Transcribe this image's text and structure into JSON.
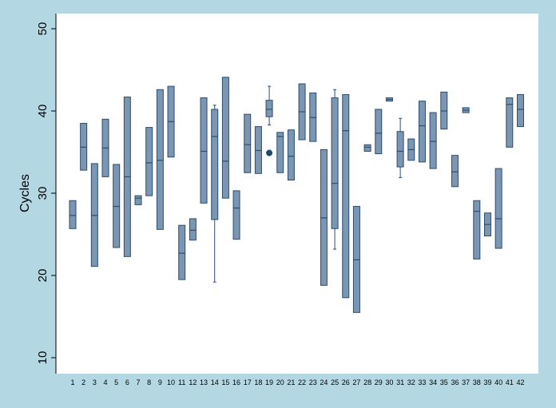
{
  "chart_data": {
    "type": "box",
    "title": "",
    "xlabel": "",
    "ylabel": "Cycles",
    "ylim": [
      8,
      52
    ],
    "yticks": [
      10,
      20,
      30,
      40,
      50
    ],
    "grid": false,
    "categories": [
      "1",
      "2",
      "3",
      "4",
      "5",
      "6",
      "7",
      "8",
      "9",
      "10",
      "11",
      "12",
      "13",
      "14",
      "15",
      "16",
      "17",
      "18",
      "19",
      "20",
      "21",
      "22",
      "23",
      "24",
      "25",
      "26",
      "27",
      "28",
      "29",
      "30",
      "31",
      "32",
      "33",
      "34",
      "35",
      "36",
      "37",
      "38",
      "39",
      "40",
      "41",
      "42"
    ],
    "boxes": [
      {
        "q1": 25.7,
        "median": 27.3,
        "q3": 29.1,
        "whisker_low": 25.7,
        "whisker_high": 29.1,
        "outliers": []
      },
      {
        "q1": 32.8,
        "median": 35.6,
        "q3": 38.5,
        "whisker_low": 32.8,
        "whisker_high": 38.5,
        "outliers": []
      },
      {
        "q1": 21.1,
        "median": 27.3,
        "q3": 33.6,
        "whisker_low": 21.1,
        "whisker_high": 33.6,
        "outliers": []
      },
      {
        "q1": 32.0,
        "median": 35.5,
        "q3": 39.0,
        "whisker_low": 32.0,
        "whisker_high": 39.0,
        "outliers": []
      },
      {
        "q1": 23.4,
        "median": 28.4,
        "q3": 33.5,
        "whisker_low": 23.4,
        "whisker_high": 33.5,
        "outliers": []
      },
      {
        "q1": 22.3,
        "median": 32.0,
        "q3": 41.7,
        "whisker_low": 22.3,
        "whisker_high": 41.7,
        "outliers": []
      },
      {
        "q1": 28.6,
        "median": 29.4,
        "q3": 29.7,
        "whisker_low": 28.6,
        "whisker_high": 29.7,
        "outliers": []
      },
      {
        "q1": 29.7,
        "median": 33.7,
        "q3": 38.0,
        "whisker_low": 29.7,
        "whisker_high": 38.0,
        "outliers": []
      },
      {
        "q1": 25.6,
        "median": 34.0,
        "q3": 42.6,
        "whisker_low": 25.6,
        "whisker_high": 42.6,
        "outliers": []
      },
      {
        "q1": 34.4,
        "median": 38.7,
        "q3": 43.0,
        "whisker_low": 34.4,
        "whisker_high": 43.0,
        "outliers": []
      },
      {
        "q1": 19.5,
        "median": 22.7,
        "q3": 26.1,
        "whisker_low": 19.5,
        "whisker_high": 26.1,
        "outliers": []
      },
      {
        "q1": 24.3,
        "median": 25.5,
        "q3": 26.9,
        "whisker_low": 24.3,
        "whisker_high": 26.9,
        "outliers": []
      },
      {
        "q1": 28.8,
        "median": 35.1,
        "q3": 41.6,
        "whisker_low": 28.8,
        "whisker_high": 41.6,
        "outliers": []
      },
      {
        "q1": 26.8,
        "median": 36.9,
        "q3": 40.2,
        "whisker_low": 19.2,
        "whisker_high": 40.7,
        "outliers": []
      },
      {
        "q1": 29.4,
        "median": 33.9,
        "q3": 44.1,
        "whisker_low": 29.4,
        "whisker_high": 44.1,
        "outliers": []
      },
      {
        "q1": 24.4,
        "median": 28.2,
        "q3": 30.3,
        "whisker_low": 24.4,
        "whisker_high": 30.3,
        "outliers": []
      },
      {
        "q1": 32.5,
        "median": 35.9,
        "q3": 39.6,
        "whisker_low": 32.5,
        "whisker_high": 39.6,
        "outliers": []
      },
      {
        "q1": 32.4,
        "median": 35.2,
        "q3": 38.1,
        "whisker_low": 32.4,
        "whisker_high": 38.1,
        "outliers": []
      },
      {
        "q1": 39.3,
        "median": 40.2,
        "q3": 41.3,
        "whisker_low": 38.3,
        "whisker_high": 43.0,
        "outliers": [
          34.9
        ]
      },
      {
        "q1": 32.5,
        "median": 36.9,
        "q3": 37.4,
        "whisker_low": 32.5,
        "whisker_high": 37.4,
        "outliers": []
      },
      {
        "q1": 31.6,
        "median": 34.5,
        "q3": 37.7,
        "whisker_low": 31.6,
        "whisker_high": 37.7,
        "outliers": []
      },
      {
        "q1": 36.5,
        "median": 39.9,
        "q3": 43.3,
        "whisker_low": 36.5,
        "whisker_high": 43.3,
        "outliers": []
      },
      {
        "q1": 36.3,
        "median": 39.2,
        "q3": 42.2,
        "whisker_low": 36.3,
        "whisker_high": 42.2,
        "outliers": []
      },
      {
        "q1": 18.8,
        "median": 27.0,
        "q3": 35.3,
        "whisker_low": 18.8,
        "whisker_high": 35.3,
        "outliers": []
      },
      {
        "q1": 25.7,
        "median": 31.2,
        "q3": 41.6,
        "whisker_low": 23.2,
        "whisker_high": 42.6,
        "outliers": []
      },
      {
        "q1": 17.3,
        "median": 37.6,
        "q3": 42.0,
        "whisker_low": 17.3,
        "whisker_high": 42.0,
        "outliers": []
      },
      {
        "q1": 15.5,
        "median": 21.9,
        "q3": 28.4,
        "whisker_low": 15.5,
        "whisker_high": 28.4,
        "outliers": []
      },
      {
        "q1": 35.1,
        "median": 35.6,
        "q3": 35.9,
        "whisker_low": 35.1,
        "whisker_high": 35.9,
        "outliers": []
      },
      {
        "q1": 34.8,
        "median": 37.3,
        "q3": 40.2,
        "whisker_low": 34.8,
        "whisker_high": 40.2,
        "outliers": []
      },
      {
        "q1": 41.2,
        "median": 41.4,
        "q3": 41.6,
        "whisker_low": 41.2,
        "whisker_high": 41.6,
        "outliers": []
      },
      {
        "q1": 33.2,
        "median": 35.1,
        "q3": 37.5,
        "whisker_low": 31.9,
        "whisker_high": 39.1,
        "outliers": []
      },
      {
        "q1": 34.0,
        "median": 35.3,
        "q3": 36.6,
        "whisker_low": 34.0,
        "whisker_high": 36.6,
        "outliers": []
      },
      {
        "q1": 33.8,
        "median": 38.2,
        "q3": 41.2,
        "whisker_low": 33.8,
        "whisker_high": 41.2,
        "outliers": []
      },
      {
        "q1": 33.0,
        "median": 36.3,
        "q3": 39.8,
        "whisker_low": 33.0,
        "whisker_high": 39.8,
        "outliers": []
      },
      {
        "q1": 37.8,
        "median": 40.0,
        "q3": 42.3,
        "whisker_low": 37.8,
        "whisker_high": 42.3,
        "outliers": []
      },
      {
        "q1": 30.8,
        "median": 32.6,
        "q3": 34.6,
        "whisker_low": 30.8,
        "whisker_high": 34.6,
        "outliers": []
      },
      {
        "q1": 39.8,
        "median": 40.1,
        "q3": 40.4,
        "whisker_low": 39.8,
        "whisker_high": 40.4,
        "outliers": []
      },
      {
        "q1": 22.0,
        "median": 27.8,
        "q3": 29.1,
        "whisker_low": 22.0,
        "whisker_high": 29.1,
        "outliers": []
      },
      {
        "q1": 24.8,
        "median": 26.2,
        "q3": 27.6,
        "whisker_low": 24.8,
        "whisker_high": 27.6,
        "outliers": []
      },
      {
        "q1": 23.3,
        "median": 26.9,
        "q3": 33.0,
        "whisker_low": 23.3,
        "whisker_high": 33.0,
        "outliers": []
      },
      {
        "q1": 35.6,
        "median": 40.8,
        "q3": 41.6,
        "whisker_low": 35.6,
        "whisker_high": 41.6,
        "outliers": []
      },
      {
        "q1": 38.1,
        "median": 40.2,
        "q3": 42.0,
        "whisker_low": 38.1,
        "whisker_high": 42.0,
        "outliers": []
      }
    ],
    "colors": {
      "background": "#b4d8e3",
      "plot_background": "#ffffff",
      "box_fill": "#7b96b2",
      "box_stroke": "#2d4d6e",
      "outlier": "#1a4a70"
    }
  }
}
